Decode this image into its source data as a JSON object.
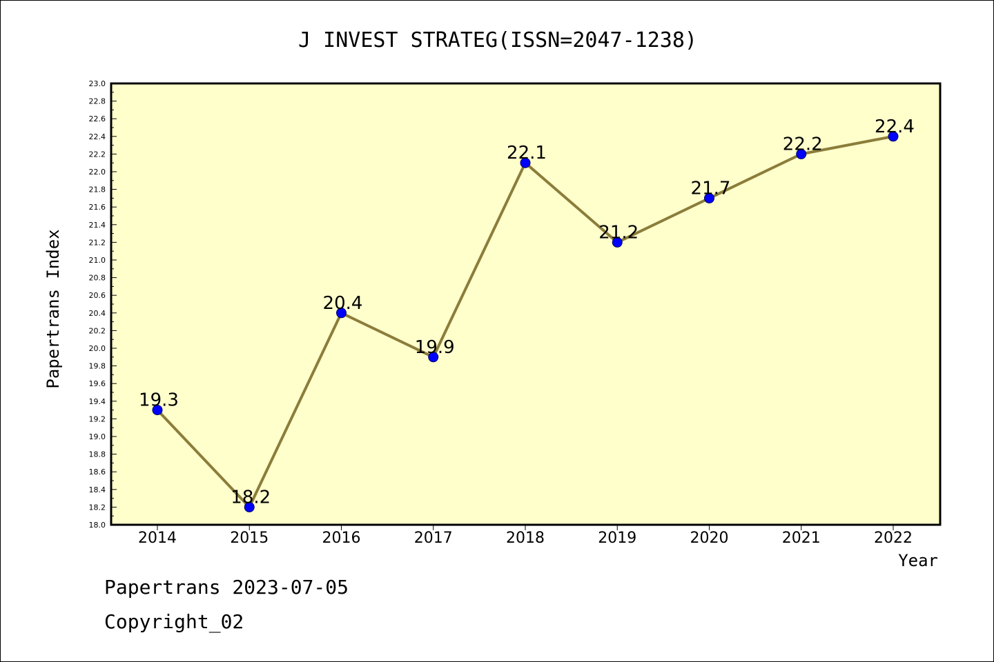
{
  "chart_data": {
    "type": "line",
    "title": "J INVEST STRATEG(ISSN=2047-1238)",
    "xlabel": "Year",
    "ylabel": "Papertrans Index",
    "categories": [
      "2014",
      "2015",
      "2016",
      "2017",
      "2018",
      "2019",
      "2020",
      "2021",
      "2022"
    ],
    "series": [
      {
        "values": [
          19.3,
          18.2,
          20.4,
          19.9,
          22.1,
          21.2,
          21.7,
          22.2,
          22.4
        ],
        "data_labels": [
          "19.3",
          "18.2",
          "20.4",
          "19.9",
          "22.1",
          "21.2",
          "21.7",
          "22.2",
          "22.4"
        ]
      }
    ],
    "ylim": [
      18.0,
      23.0
    ],
    "y_tick_labels": [
      "18.0",
      "18.2",
      "18.4",
      "18.6",
      "18.8",
      "19.0",
      "19.2",
      "19.4",
      "19.6",
      "19.8",
      "20.0",
      "20.2",
      "20.4",
      "20.6",
      "20.8",
      "21.0",
      "21.2",
      "21.4",
      "21.6",
      "21.8",
      "22.0",
      "22.2",
      "22.4",
      "22.6",
      "22.8",
      "23.0"
    ],
    "grid": false,
    "colors": {
      "plot_background": "#ffffcc",
      "line": "#8b7d3a",
      "marker": "#0000ff",
      "marker_edge": "#000066"
    }
  },
  "footer": {
    "line1": "Papertrans 2023-07-05",
    "line2": "Copyright_02"
  }
}
